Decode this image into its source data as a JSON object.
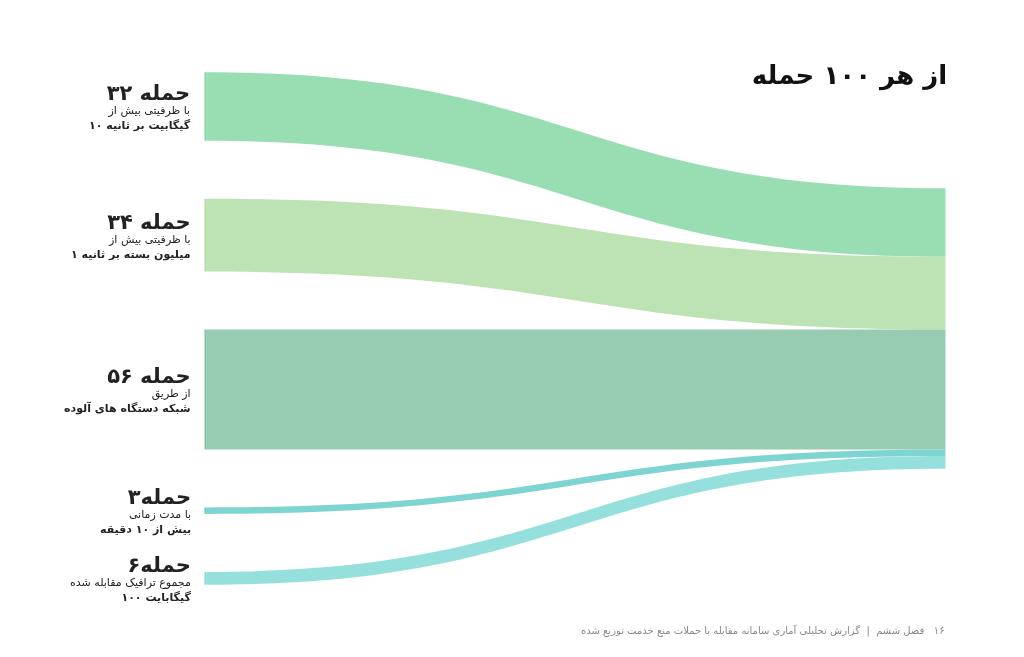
{
  "chart_data": {
    "type": "other",
    "title": "از هر ۱۰۰ حمله",
    "categories": [
      "با ظرفیتی بیش از\n۱۰ گیگابیت بر ثانیه",
      "با ظرفیتی بیش از\n۱ میلیون بسته بر ثانیه",
      "از طریق\nشبکه دستگاه های آلوده",
      "با مدت زمانی\nبیش از ۱۰ دقیقه",
      "مجموع ترافیک مقابله شده\n۱۰۰ گیگابایت"
    ],
    "value_labels": [
      "۳۲ حمله",
      "۳۴ حمله",
      "۵۶ حمله",
      "۳حمله",
      "۶حمله"
    ],
    "values": [
      32,
      34,
      56,
      3,
      6
    ],
    "colors": [
      "#7fd6a0",
      "#acdba0",
      "#7dbfa0",
      "#5ec9c4",
      "#7bd8d4"
    ],
    "annotations": [
      "۱۶   فصل ششم  |  گزارش تحلیلی آماری سامانه مقابله با حملات منع خدمت توزیع شده"
    ]
  }
}
